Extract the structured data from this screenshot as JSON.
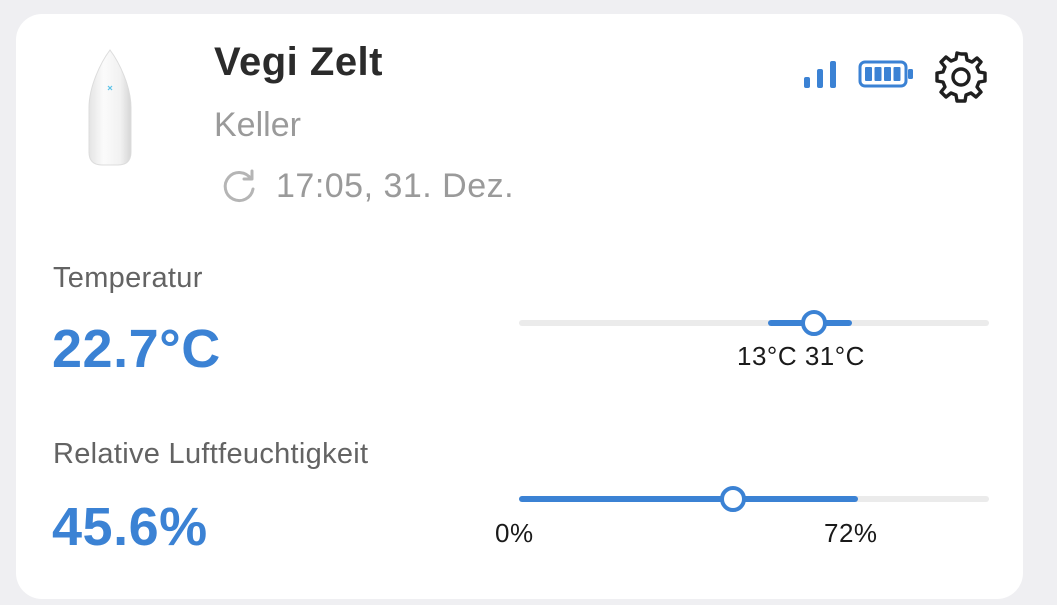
{
  "device": {
    "name": "Vegi Zelt",
    "room": "Keller",
    "last_update": "17:05, 31. Dez.",
    "icons": [
      "refresh-icon",
      "signal-icon",
      "battery-icon",
      "gear-icon"
    ],
    "signal_bars": 3,
    "battery_level": 1.0
  },
  "temperature": {
    "label": "Temperatur",
    "value": "22.7°C",
    "min_label": "13°C",
    "max_label": "31°C",
    "range_text": "13°C 31°C",
    "level": 0.627
  },
  "humidity": {
    "label": "Relative Luftfeuchtigkeit",
    "value": "45.6%",
    "min_label": "0%",
    "max_label": "72%",
    "level": 0.456
  },
  "colors": {
    "accent": "#3b82d4",
    "title": "#2b2b2b",
    "muted": "#9a9a9a",
    "label": "#636363",
    "track": "#ebebeb",
    "card": "#ffffff",
    "background": "#efeff2"
  }
}
